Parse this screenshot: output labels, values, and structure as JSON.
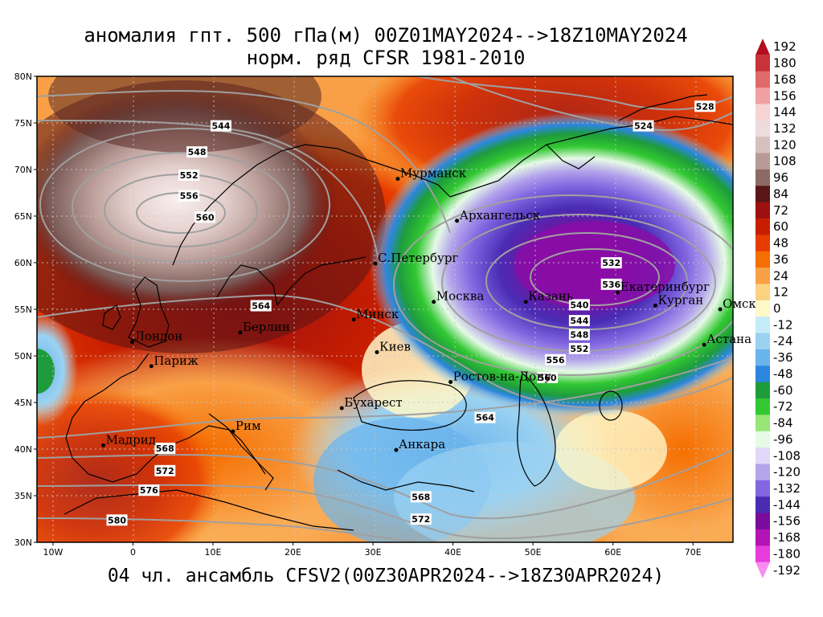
{
  "title": {
    "line1": "аномалия гпт. 500 гПа(м) 00Z01MAY2024-->18Z10MAY2024",
    "line2": "норм. ряд CFSR 1981-2010"
  },
  "footer": "04 чл. ансамбль CFSV2(00Z30APR2024-->18Z30APR2024)",
  "axes": {
    "lat_ticks": [
      "80N",
      "75N",
      "70N",
      "65N",
      "60N",
      "55N",
      "50N",
      "45N",
      "40N",
      "35N",
      "30N"
    ],
    "lon_ticks": [
      "10W",
      "0",
      "10E",
      "20E",
      "30E",
      "40E",
      "50E",
      "60E",
      "70E"
    ]
  },
  "cities": [
    {
      "name": "Мурманск",
      "lon": 33.1,
      "lat": 69.0
    },
    {
      "name": "Архангельск",
      "lon": 40.5,
      "lat": 64.5
    },
    {
      "name": "С.Петербург",
      "lon": 30.3,
      "lat": 59.9
    },
    {
      "name": "Москва",
      "lon": 37.6,
      "lat": 55.8
    },
    {
      "name": "Казань",
      "lon": 49.1,
      "lat": 55.8
    },
    {
      "name": "Екатеринбург",
      "lon": 60.6,
      "lat": 56.8
    },
    {
      "name": "Курган",
      "lon": 65.3,
      "lat": 55.4
    },
    {
      "name": "Омск",
      "lon": 73.4,
      "lat": 55.0
    },
    {
      "name": "Астана",
      "lon": 71.4,
      "lat": 51.2
    },
    {
      "name": "Минск",
      "lon": 27.6,
      "lat": 53.9
    },
    {
      "name": "Киев",
      "lon": 30.5,
      "lat": 50.4
    },
    {
      "name": "Берлин",
      "lon": 13.4,
      "lat": 52.5
    },
    {
      "name": "Лондон",
      "lon": -0.1,
      "lat": 51.5
    },
    {
      "name": "Париж",
      "lon": 2.3,
      "lat": 48.9
    },
    {
      "name": "Ростов-на-Дону",
      "lon": 39.7,
      "lat": 47.2
    },
    {
      "name": "Бухарест",
      "lon": 26.1,
      "lat": 44.4
    },
    {
      "name": "Рим",
      "lon": 12.5,
      "lat": 41.9
    },
    {
      "name": "Мадрид",
      "lon": -3.7,
      "lat": 40.4
    },
    {
      "name": "Анкара",
      "lon": 32.9,
      "lat": 39.9
    }
  ],
  "contour_labels": [
    {
      "text": "528",
      "lon": 71.5,
      "lat": 76.7
    },
    {
      "text": "524",
      "lon": 63.8,
      "lat": 74.6
    },
    {
      "text": "544",
      "lon": 11.0,
      "lat": 74.6
    },
    {
      "text": "548",
      "lon": 8.0,
      "lat": 71.8
    },
    {
      "text": "552",
      "lon": 7.0,
      "lat": 69.3
    },
    {
      "text": "556",
      "lon": 7.0,
      "lat": 67.1
    },
    {
      "text": "560",
      "lon": 9.0,
      "lat": 64.8
    },
    {
      "text": "564",
      "lon": 16.0,
      "lat": 55.3
    },
    {
      "text": "532",
      "lon": 59.8,
      "lat": 59.9
    },
    {
      "text": "536",
      "lon": 59.8,
      "lat": 57.6
    },
    {
      "text": "540",
      "lon": 55.8,
      "lat": 55.4
    },
    {
      "text": "544",
      "lon": 55.8,
      "lat": 53.7
    },
    {
      "text": "548",
      "lon": 55.8,
      "lat": 52.2
    },
    {
      "text": "552",
      "lon": 55.8,
      "lat": 50.7
    },
    {
      "text": "556",
      "lon": 52.8,
      "lat": 49.5
    },
    {
      "text": "560",
      "lon": 51.8,
      "lat": 47.6
    },
    {
      "text": "564",
      "lon": 44.0,
      "lat": 43.3
    },
    {
      "text": "568",
      "lon": 4.0,
      "lat": 40.0
    },
    {
      "text": "572",
      "lon": 4.0,
      "lat": 37.6
    },
    {
      "text": "576",
      "lon": 2.0,
      "lat": 35.5
    },
    {
      "text": "580",
      "lon": -2.0,
      "lat": 32.3
    },
    {
      "text": "568",
      "lon": 36.0,
      "lat": 34.8
    },
    {
      "text": "572",
      "lon": 36.0,
      "lat": 32.4
    }
  ],
  "colorbar": {
    "labels": [
      "192",
      "180",
      "168",
      "156",
      "144",
      "132",
      "120",
      "108",
      "96",
      "84",
      "72",
      "60",
      "48",
      "36",
      "24",
      "12",
      "0",
      "-12",
      "-24",
      "-36",
      "-48",
      "-60",
      "-72",
      "-84",
      "-96",
      "-108",
      "-120",
      "-132",
      "-144",
      "-156",
      "-168",
      "-180",
      "-192"
    ],
    "colors": [
      "#b40f1e",
      "#c8323a",
      "#e06a6a",
      "#f0a0a0",
      "#f7d4d4",
      "#ecdcdc",
      "#d6c0bd",
      "#b89b96",
      "#8c6a66",
      "#5a1616",
      "#9e1010",
      "#c81e00",
      "#e63c00",
      "#f56e00",
      "#f9a046",
      "#fbd282",
      "#fff8c8",
      "#c4ecf8",
      "#9ad2f2",
      "#6ab4ec",
      "#2c86e0",
      "#1e9c3c",
      "#32c832",
      "#96e678",
      "#e6fae6",
      "#e0d8f8",
      "#b4a4ec",
      "#8266e0",
      "#4a2cb4",
      "#7a0c9c",
      "#b414b4",
      "#e63cdc",
      "#f88cf0"
    ]
  },
  "colors": {
    "contour_line": "#a0a0a0",
    "grid_line": "#c8c8c8",
    "coast": "#000000"
  }
}
